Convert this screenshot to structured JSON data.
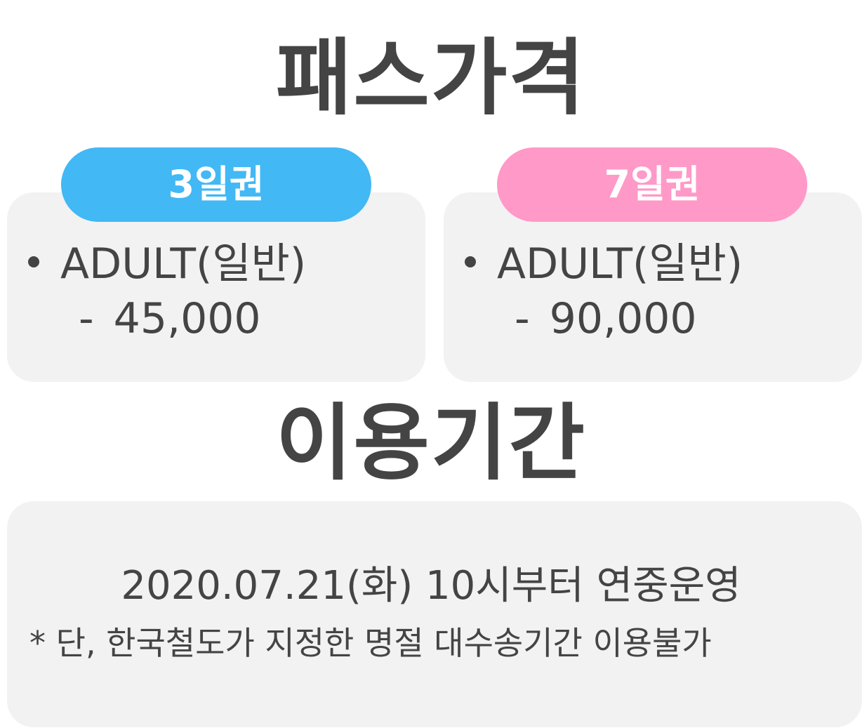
{
  "colors": {
    "text": "#444444",
    "card_background": "#f2f2f2",
    "pill_3day": "#42b8f5",
    "pill_7day": "#ff99c8"
  },
  "price_section": {
    "title": "패스가격",
    "passes": [
      {
        "label": "3일권",
        "item_label": "ADULT(일반)",
        "dash": "-",
        "price": "45,000"
      },
      {
        "label": "7일권",
        "item_label": "ADULT(일반)",
        "dash": "-",
        "price": "90,000"
      }
    ]
  },
  "period_section": {
    "title": "이용기간",
    "main_text": "2020.07.21(화) 10시부터 연중운영",
    "note": "* 단, 한국철도가 지정한 명절 대수송기간 이용불가"
  }
}
